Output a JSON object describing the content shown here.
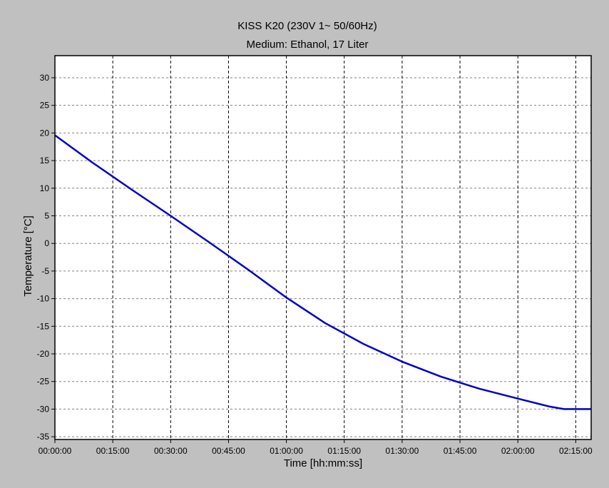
{
  "chart_data": {
    "type": "line",
    "title": "KISS K20 (230V 1~ 50/60Hz)",
    "subtitle": "Medium: Ethanol, 17 Liter",
    "xlabel": "Time [hh:mm:ss]",
    "ylabel": "Temperature [°C]",
    "xlim": [
      "00:00:00",
      "02:19:00"
    ],
    "ylim": [
      -35.5,
      34
    ],
    "grid": true,
    "x_ticks": [
      "00:00:00",
      "00:15:00",
      "00:30:00",
      "00:45:00",
      "01:00:00",
      "01:15:00",
      "01:30:00",
      "01:45:00",
      "02:00:00",
      "02:15:00"
    ],
    "y_ticks": [
      30,
      25,
      20,
      15,
      10,
      5,
      0,
      -5,
      -10,
      -15,
      -20,
      -25,
      -30,
      -35
    ],
    "series": [
      {
        "color": "#0000c8",
        "x": [
          "00:00:00",
          "00:10:00",
          "00:20:00",
          "00:30:00",
          "00:40:00",
          "00:50:00",
          "01:00:00",
          "01:10:00",
          "01:20:00",
          "01:30:00",
          "01:40:00",
          "01:50:00",
          "02:00:00",
          "02:08:00",
          "02:12:00",
          "02:19:00"
        ],
        "values": [
          19.6,
          14.5,
          9.7,
          5.0,
          0.2,
          -4.7,
          -9.8,
          -14.4,
          -18.2,
          -21.4,
          -24.1,
          -26.3,
          -28.1,
          -29.5,
          -30.0,
          -30.0
        ]
      }
    ]
  }
}
